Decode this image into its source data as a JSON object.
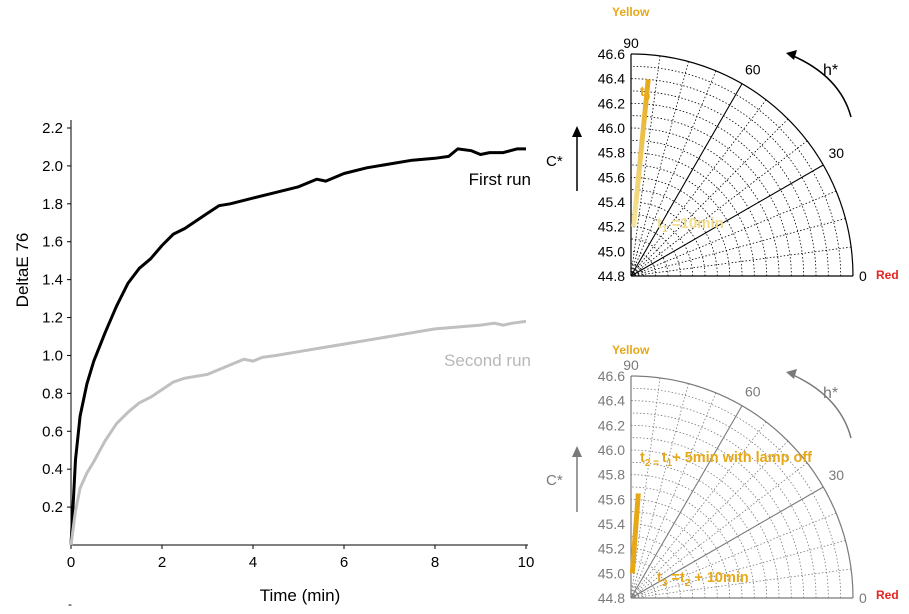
{
  "chart_data": [
    {
      "type": "line",
      "xlabel": "Time (min)",
      "ylabel": "DeltaE 76",
      "xlim": [
        0,
        10
      ],
      "ylim": [
        0,
        2.2
      ],
      "xticks": [
        "0",
        "2",
        "4",
        "6",
        "8",
        "10"
      ],
      "yticks": [
        "0.2",
        "0.4",
        "0.6",
        "0.8",
        "1.0",
        "1.2",
        "1.4",
        "1.6",
        "1.8",
        "2.0",
        "2.2"
      ],
      "stray_mark": "-",
      "series": [
        {
          "name": "First run",
          "color": "#000000",
          "x": [
            0,
            0.1,
            0.2,
            0.35,
            0.5,
            0.75,
            1.0,
            1.25,
            1.5,
            1.75,
            2.0,
            2.25,
            2.5,
            3.0,
            3.25,
            3.5,
            4.0,
            4.5,
            5.0,
            5.4,
            5.6,
            6.0,
            6.5,
            7.0,
            7.5,
            8.0,
            8.3,
            8.5,
            8.8,
            9.0,
            9.2,
            9.5,
            9.8,
            10.0
          ],
          "y": [
            0.0,
            0.45,
            0.68,
            0.85,
            0.97,
            1.12,
            1.26,
            1.38,
            1.46,
            1.51,
            1.58,
            1.64,
            1.67,
            1.75,
            1.79,
            1.8,
            1.83,
            1.86,
            1.89,
            1.93,
            1.92,
            1.96,
            1.99,
            2.01,
            2.03,
            2.04,
            2.05,
            2.09,
            2.08,
            2.06,
            2.07,
            2.07,
            2.09,
            2.09
          ]
        },
        {
          "name": "Second run",
          "color": "#c0c0c0",
          "x": [
            0,
            0.1,
            0.2,
            0.35,
            0.5,
            0.75,
            1.0,
            1.25,
            1.5,
            1.75,
            2.0,
            2.25,
            2.5,
            3.0,
            3.5,
            3.8,
            4.0,
            4.2,
            4.5,
            5.0,
            5.5,
            6.0,
            6.5,
            7.0,
            7.5,
            8.0,
            8.5,
            9.0,
            9.3,
            9.5,
            9.7,
            10.0
          ],
          "y": [
            0.0,
            0.18,
            0.3,
            0.38,
            0.44,
            0.55,
            0.64,
            0.7,
            0.75,
            0.78,
            0.82,
            0.86,
            0.88,
            0.9,
            0.95,
            0.98,
            0.97,
            0.99,
            1.0,
            1.02,
            1.04,
            1.06,
            1.08,
            1.1,
            1.12,
            1.14,
            1.15,
            1.16,
            1.17,
            1.16,
            1.17,
            1.18
          ]
        }
      ]
    },
    {
      "type": "polar",
      "color": "#000000",
      "labels": {
        "top": "Yellow",
        "right": "Red",
        "radial_axis": "C*",
        "angle_axis": "h*",
        "angle_ticks": [
          "90",
          "60",
          "30",
          "0"
        ],
        "marker_start": "t",
        "marker_start_sub": "0",
        "marker_end": "t",
        "marker_end_sub": "1",
        "marker_end_text": " =10min"
      },
      "radial_ticks": [
        "46.6",
        "46.4",
        "46.2",
        "46.0",
        "45.8",
        "45.6",
        "45.4",
        "45.2",
        "45.0",
        "44.8"
      ],
      "rlim": [
        44.8,
        46.6
      ],
      "trajectory": {
        "color_start": "#f5e6a0",
        "color_end": "#e6a817",
        "from": {
          "C": 45.2,
          "h": 87
        },
        "to": {
          "C": 46.4,
          "h": 85
        }
      }
    },
    {
      "type": "polar",
      "color": "#7a7a7a",
      "labels": {
        "top": "Yellow",
        "right": "Red",
        "radial_axis": "C*",
        "angle_axis": "h*",
        "angle_ticks": [
          "90",
          "60",
          "30",
          "0"
        ],
        "marker_a": "t",
        "marker_a_sub": "2",
        "marker_a_mid": " = ",
        "marker_a_sub2": "t",
        "marker_a_sub2_sub": "1",
        "marker_a_text": "+ 5min with lamp off",
        "marker_b": "t",
        "marker_b_sub": "3",
        "marker_b_text": " =t",
        "marker_b_sub2": "2",
        "marker_b_text2": " + 10min"
      },
      "radial_ticks": [
        "46.6",
        "46.4",
        "46.2",
        "46.0",
        "45.8",
        "45.6",
        "45.4",
        "45.2",
        "45.0",
        "44.8"
      ],
      "rlim": [
        44.8,
        46.6
      ],
      "trajectory": {
        "color_start": "#e6a817",
        "color_end": "#e6a817",
        "from": {
          "C": 45.0,
          "h": 87
        },
        "to": {
          "C": 45.65,
          "h": 86
        }
      }
    }
  ]
}
